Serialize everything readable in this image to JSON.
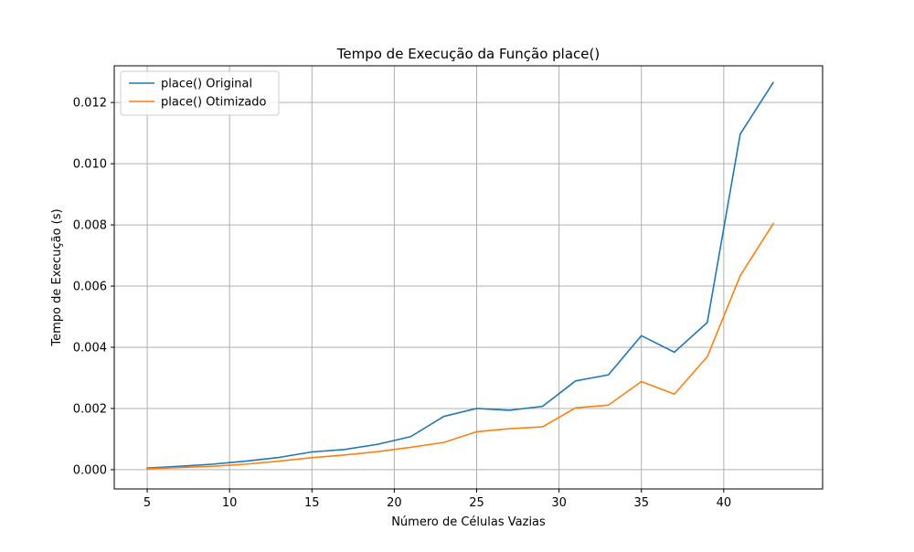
{
  "chart_data": {
    "type": "line",
    "title": "Tempo de Execução da Função place()",
    "xlabel": "Número de Células Vazias",
    "ylabel": "Tempo de Execução (s)",
    "xlim": [
      3,
      46
    ],
    "ylim": [
      -0.00063,
      0.0132
    ],
    "xticks": [
      5,
      10,
      15,
      20,
      25,
      30,
      35,
      40
    ],
    "yticks": [
      0.0,
      0.002,
      0.004,
      0.006,
      0.008,
      0.01,
      0.012
    ],
    "ytick_labels": [
      "0.000",
      "0.002",
      "0.004",
      "0.006",
      "0.008",
      "0.010",
      "0.012"
    ],
    "grid": true,
    "legend_position": "top-left",
    "x": [
      5,
      7,
      9,
      11,
      13,
      15,
      17,
      19,
      21,
      23,
      25,
      27,
      29,
      31,
      33,
      35,
      37,
      39,
      41,
      43
    ],
    "series": [
      {
        "name": "place() Original",
        "color": "#1f77b4",
        "values": [
          5e-05,
          0.00011,
          0.00018,
          0.00028,
          0.0004,
          0.00058,
          0.00066,
          0.00083,
          0.00108,
          0.00174,
          0.002,
          0.00194,
          0.00207,
          0.0029,
          0.0031,
          0.00438,
          0.00384,
          0.00481,
          0.01097,
          0.01265
        ]
      },
      {
        "name": "place() Otimizado",
        "color": "#ff7f0e",
        "values": [
          3e-05,
          7e-05,
          0.00011,
          0.00018,
          0.00028,
          0.00039,
          0.00048,
          0.00059,
          0.00073,
          0.00089,
          0.00124,
          0.00134,
          0.0014,
          0.00202,
          0.00211,
          0.00288,
          0.00247,
          0.00369,
          0.00634,
          0.00804
        ]
      }
    ]
  }
}
